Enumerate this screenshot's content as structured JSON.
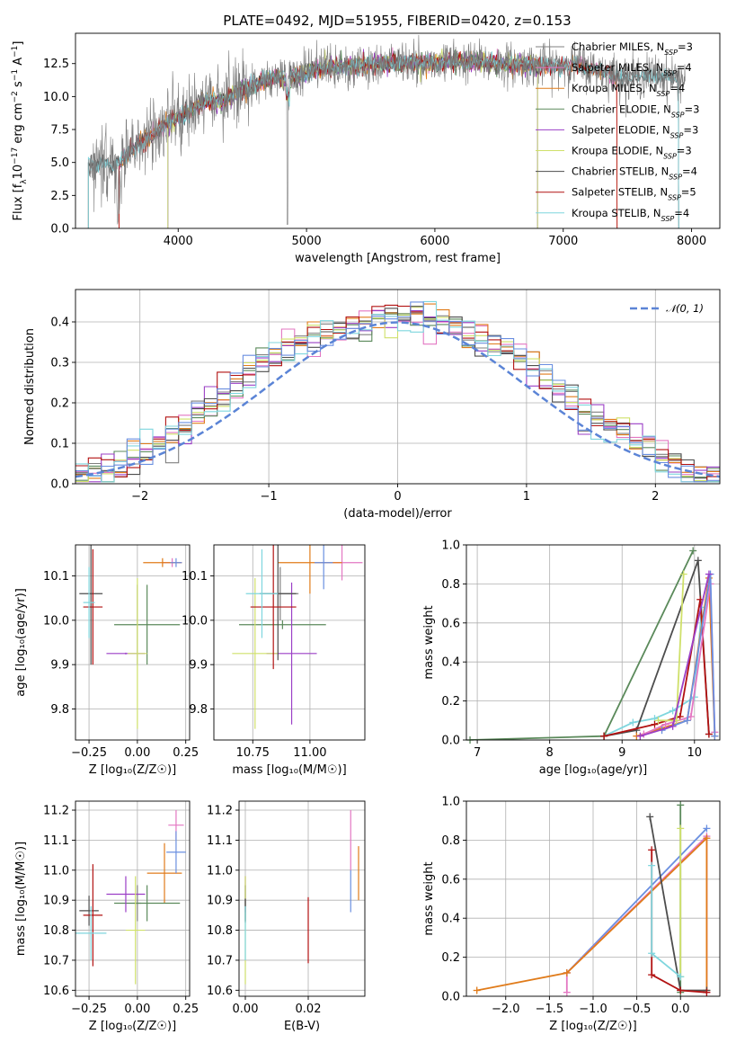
{
  "colors": {
    "chabrier_miles": "#808080",
    "salpeter_miles": "#e377c2",
    "kroupa_miles": "#e07b1a",
    "chabrier_elodie": "#5b8a5b",
    "salpeter_elodie": "#9b3fc6",
    "kroupa_elodie": "#cfe06a",
    "chabrier_stelib": "#4d4d4d",
    "salpeter_stelib": "#b21212",
    "kroupa_stelib": "#7fd6de",
    "normal": "#5b84d6",
    "blue": "#6a8fe0"
  },
  "chart_data": [
    {
      "id": "spectrum",
      "type": "line",
      "title": "PLATE=0492, MJD=51955, FIBERID=0420, z=0.153",
      "xlabel": "wavelength [Angstrom, rest frame]",
      "ylabel_html": "Flux [f<tspan baseline-shift='sub' font-size='9'>λ</tspan>10<tspan baseline-shift='super' font-size='9'>−17</tspan> erg cm<tspan baseline-shift='super' font-size='9'>−2</tspan> s<tspan baseline-shift='super' font-size='9'>−1</tspan> A<tspan baseline-shift='super' font-size='9'>−1</tspan>]",
      "xlim": [
        3200,
        8220
      ],
      "ylim": [
        0,
        14.8
      ],
      "xticks": [
        4000,
        5000,
        6000,
        7000,
        8000
      ],
      "yticks": [
        0.0,
        2.5,
        5.0,
        7.5,
        10.0,
        12.5
      ],
      "grid": false,
      "legend_position": "upper right",
      "legend": [
        {
          "label": "Chabrier MILES, N",
          "sub": "SSP",
          "val": "=3",
          "color": "#808080"
        },
        {
          "label": "Salpeter MILES, N",
          "sub": "SSP",
          "val": "=4",
          "color": "#e377c2"
        },
        {
          "label": "Kroupa MILES, N",
          "sub": "SSP",
          "val": "=4",
          "color": "#e07b1a"
        },
        {
          "label": "Chabrier ELODIE, N",
          "sub": "SSP",
          "val": "=3",
          "color": "#5b8a5b"
        },
        {
          "label": "Salpeter ELODIE, N",
          "sub": "SSP",
          "val": "=3",
          "color": "#9b3fc6"
        },
        {
          "label": "Kroupa ELODIE, N",
          "sub": "SSP",
          "val": "=3",
          "color": "#cfe06a"
        },
        {
          "label": "Chabrier STELIB, N",
          "sub": "SSP",
          "val": "=4",
          "color": "#4d4d4d"
        },
        {
          "label": "Salpeter STELIB, N",
          "sub": "SSP",
          "val": "=5",
          "color": "#b21212"
        },
        {
          "label": "Kroupa STELIB, N",
          "sub": "SSP",
          "val": "=4",
          "color": "#7fd6de"
        }
      ],
      "model_continuum": {
        "x": [
          3300,
          3500,
          3700,
          3900,
          4050,
          4200,
          4350,
          4500,
          4700,
          4900,
          5100,
          5300,
          5500,
          5700,
          5900,
          6100,
          6300,
          6500,
          6700,
          6900,
          7100,
          7300,
          7500,
          7700,
          7900,
          8000
        ],
        "y": [
          5.0,
          4.7,
          6.5,
          7.8,
          8.7,
          9.6,
          9.7,
          10.5,
          11.3,
          11.5,
          12.1,
          12.3,
          12.4,
          12.6,
          12.5,
          12.7,
          12.6,
          12.5,
          12.4,
          12.3,
          12.4,
          11.9,
          11.4,
          11.7,
          11.4,
          11.3
        ]
      },
      "models_range": [
        {
          "name": "Chabrier MILES",
          "x0": 3300,
          "x1": 7900
        },
        {
          "name": "Salpeter MILES",
          "x0": 3540,
          "x1": 7420
        },
        {
          "name": "Kroupa MILES",
          "x0": 3540,
          "x1": 7420
        },
        {
          "name": "Chabrier ELODIE",
          "x0": 3920,
          "x1": 6800
        },
        {
          "name": "Salpeter ELODIE",
          "x0": 3920,
          "x1": 6800
        },
        {
          "name": "Kroupa ELODIE",
          "x0": 3920,
          "x1": 6800
        },
        {
          "name": "Chabrier STELIB",
          "x0": 3300,
          "x1": 7900
        },
        {
          "name": "Salpeter STELIB",
          "x0": 3540,
          "x1": 7420
        },
        {
          "name": "Kroupa STELIB",
          "x0": 3300,
          "x1": 7900
        }
      ]
    },
    {
      "id": "residuals",
      "type": "line",
      "xlabel": "(data-model)/error",
      "ylabel": "Normed distribution",
      "xlim": [
        -2.5,
        2.5
      ],
      "ylim": [
        0,
        0.48
      ],
      "xticks": [
        -2,
        -1,
        0,
        1,
        2
      ],
      "xticklabels": [
        "−2",
        "−1",
        "0",
        "1",
        "2"
      ],
      "yticks": [
        0.0,
        0.1,
        0.2,
        0.3,
        0.4
      ],
      "grid": true,
      "legend_position": "upper right",
      "legend": [
        {
          "label": "𝒩(0, 1)",
          "color": "#5b84d6"
        }
      ],
      "bin_width": 0.1,
      "hist_envelope": [
        0.02,
        0.03,
        0.04,
        0.05,
        0.06,
        0.08,
        0.1,
        0.12,
        0.13,
        0.16,
        0.19,
        0.22,
        0.25,
        0.28,
        0.3,
        0.32,
        0.33,
        0.35,
        0.36,
        0.37,
        0.38,
        0.39,
        0.4,
        0.41,
        0.41,
        0.42,
        0.41,
        0.41,
        0.4,
        0.39,
        0.37,
        0.36,
        0.34,
        0.33,
        0.31,
        0.29,
        0.26,
        0.23,
        0.21,
        0.18,
        0.16,
        0.14,
        0.12,
        0.1,
        0.08,
        0.06,
        0.05,
        0.04,
        0.03,
        0.02
      ]
    },
    {
      "id": "age_vs_z",
      "type": "scatter",
      "xlabel": "Z [log₁₀(Z/Z☉)]",
      "ylabel": "age  [log₁₀(age/yr)]",
      "xlim": [
        -0.32,
        0.27
      ],
      "ylim": [
        9.73,
        10.17
      ],
      "xticks": [
        -0.25,
        0.0,
        0.25
      ],
      "xticklabels": [
        "−0.25",
        "0.00",
        "0.25"
      ],
      "yticks": [
        9.8,
        9.9,
        10.0,
        10.1
      ],
      "grid": true,
      "points": [
        {
          "color": "#808080",
          "x": 0.0,
          "y": 9.99,
          "xerr": 0.0,
          "yerr": 0.09
        },
        {
          "color": "#e377c2",
          "x": 0.18,
          "y": 10.13,
          "xerr": 0.05,
          "yerr": 0.01
        },
        {
          "color": "#e07b1a",
          "x": 0.13,
          "y": 10.13,
          "xerr": 0.1,
          "yerr": 0.01
        },
        {
          "color": "#5b8a5b",
          "x": 0.05,
          "y": 9.99,
          "xerr": 0.17,
          "yerr": 0.09
        },
        {
          "color": "#9b3fc6",
          "x": -0.06,
          "y": 9.925,
          "xerr": 0.1,
          "yerr": 0.002
        },
        {
          "color": "#cfe06a",
          "x": 0.0,
          "y": 9.925,
          "xerr": 0.05,
          "yerr": 0.17
        },
        {
          "color": "#4d4d4d",
          "x": -0.24,
          "y": 10.06,
          "xerr": 0.06,
          "yerr": 0.16
        },
        {
          "color": "#b21212",
          "x": -0.23,
          "y": 10.03,
          "xerr": 0.05,
          "yerr": 0.13
        },
        {
          "color": "#7fd6de",
          "x": -0.25,
          "y": 10.04,
          "xerr": 0.03,
          "yerr": 0.08
        },
        {
          "color": "#6a8fe0",
          "x": 0.2,
          "y": 10.13,
          "xerr": 0.03,
          "yerr": 0.01
        }
      ]
    },
    {
      "id": "age_vs_mass",
      "type": "scatter",
      "xlabel": "mass [log₁₀(M/M☉)]",
      "xlim": [
        10.58,
        11.24
      ],
      "ylim": [
        9.73,
        10.17
      ],
      "xticks": [
        10.75,
        11.0
      ],
      "xticklabels": [
        "10.75",
        "11.00"
      ],
      "yticks": [
        9.8,
        9.9,
        10.0,
        10.1
      ],
      "grid": true,
      "points": [
        {
          "color": "#808080",
          "x": 10.87,
          "y": 10.06,
          "xerr": 0.08,
          "yerr": 0.06
        },
        {
          "color": "#e377c2",
          "x": 11.14,
          "y": 10.13,
          "xerr": 0.09,
          "yerr": 0.04
        },
        {
          "color": "#e07b1a",
          "x": 11.0,
          "y": 10.13,
          "xerr": 0.14,
          "yerr": 0.07
        },
        {
          "color": "#5b8a5b",
          "x": 10.88,
          "y": 9.99,
          "xerr": 0.19,
          "yerr": 0.01
        },
        {
          "color": "#9b3fc6",
          "x": 10.92,
          "y": 9.925,
          "xerr": 0.11,
          "yerr": 0.16
        },
        {
          "color": "#cfe06a",
          "x": 10.76,
          "y": 9.925,
          "xerr": 0.1,
          "yerr": 0.17
        },
        {
          "color": "#4d4d4d",
          "x": 10.86,
          "y": 10.06,
          "xerr": 0.08,
          "yerr": 0.15
        },
        {
          "color": "#b21212",
          "x": 10.84,
          "y": 10.03,
          "xerr": 0.1,
          "yerr": 0.14
        },
        {
          "color": "#7fd6de",
          "x": 10.79,
          "y": 10.06,
          "xerr": 0.07,
          "yerr": 0.1
        },
        {
          "color": "#6a8fe0",
          "x": 11.06,
          "y": 10.13,
          "xerr": 0.04,
          "yerr": 0.06
        }
      ]
    },
    {
      "id": "massweight_vs_age",
      "type": "line",
      "xlabel": "age  [log₁₀(age/yr)]",
      "ylabel": "mass weight",
      "xlim": [
        6.85,
        10.35
      ],
      "ylim": [
        0,
        1.0
      ],
      "xticks": [
        7,
        8,
        9,
        10
      ],
      "yticks": [
        0.0,
        0.2,
        0.4,
        0.6,
        0.8,
        1.0
      ],
      "grid": true,
      "series": [
        {
          "color": "#7fd6de",
          "x": [
            8.75,
            9.15,
            9.45,
            9.7,
            10.0,
            10.1
          ],
          "y": [
            0.02,
            0.09,
            0.11,
            0.15,
            0.22,
            0.68
          ]
        },
        {
          "color": "#5b8a5b",
          "x": [
            6.9,
            8.75,
            9.98
          ],
          "y": [
            0.0,
            0.02,
            0.97
          ]
        },
        {
          "color": "#4d4d4d",
          "x": [
            8.75,
            9.2,
            10.05,
            10.2
          ],
          "y": [
            0.02,
            0.05,
            0.92,
            0.03
          ]
        },
        {
          "color": "#b21212",
          "x": [
            8.75,
            9.45,
            9.8,
            10.08,
            10.2
          ],
          "y": [
            0.02,
            0.08,
            0.12,
            0.72,
            0.03
          ]
        },
        {
          "color": "#e07b1a",
          "x": [
            9.2,
            9.55,
            9.9,
            10.2,
            10.28
          ],
          "y": [
            0.02,
            0.06,
            0.1,
            0.83,
            0.02
          ]
        },
        {
          "color": "#e377c2",
          "x": [
            9.3,
            9.6,
            9.95,
            10.22,
            10.28
          ],
          "y": [
            0.03,
            0.08,
            0.12,
            0.8,
            0.04
          ]
        },
        {
          "color": "#cfe06a",
          "x": [
            9.5,
            9.75,
            9.85
          ],
          "y": [
            0.1,
            0.1,
            0.85
          ]
        },
        {
          "color": "#6a8fe0",
          "x": [
            9.55,
            9.9,
            10.22,
            10.28
          ],
          "y": [
            0.05,
            0.1,
            0.85,
            0.02
          ]
        },
        {
          "color": "#9b3fc6",
          "x": [
            9.25,
            9.7,
            10.2
          ],
          "y": [
            0.02,
            0.07,
            0.85
          ]
        }
      ]
    },
    {
      "id": "mass_vs_z",
      "type": "scatter",
      "xlabel": "Z [log₁₀(Z/Z☉)]",
      "ylabel": "mass [log₁₀(M/M☉)]",
      "xlim": [
        -0.32,
        0.27
      ],
      "ylim": [
        10.58,
        11.23
      ],
      "xticks": [
        -0.25,
        0.0,
        0.25
      ],
      "xticklabels": [
        "−0.25",
        "0.00",
        "0.25"
      ],
      "yticks": [
        10.6,
        10.7,
        10.8,
        10.9,
        11.0,
        11.1,
        11.2
      ],
      "grid": true,
      "points": [
        {
          "color": "#808080",
          "x": 0.0,
          "y": 10.89,
          "xerr": 0.02,
          "yerr": 0.06
        },
        {
          "color": "#e377c2",
          "x": 0.2,
          "y": 11.15,
          "xerr": 0.04,
          "yerr": 0.05
        },
        {
          "color": "#e07b1a",
          "x": 0.14,
          "y": 10.99,
          "xerr": 0.09,
          "yerr": 0.1
        },
        {
          "color": "#5b8a5b",
          "x": 0.05,
          "y": 10.89,
          "xerr": 0.17,
          "yerr": 0.06
        },
        {
          "color": "#9b3fc6",
          "x": -0.06,
          "y": 10.92,
          "xerr": 0.1,
          "yerr": 0.06
        },
        {
          "color": "#cfe06a",
          "x": -0.01,
          "y": 10.8,
          "xerr": 0.05,
          "yerr": 0.18
        },
        {
          "color": "#4d4d4d",
          "x": -0.25,
          "y": 10.865,
          "xerr": 0.05,
          "yerr": 0.05
        },
        {
          "color": "#b21212",
          "x": -0.23,
          "y": 10.85,
          "xerr": 0.05,
          "yerr": 0.17
        },
        {
          "color": "#7fd6de",
          "x": -0.24,
          "y": 10.79,
          "xerr": 0.08,
          "yerr": 0.09
        },
        {
          "color": "#6a8fe0",
          "x": 0.2,
          "y": 11.06,
          "xerr": 0.05,
          "yerr": 0.07
        }
      ]
    },
    {
      "id": "mass_vs_ebv",
      "type": "scatter",
      "xlabel": "E(B-V)",
      "xlim": [
        -0.002,
        0.038
      ],
      "ylim": [
        10.58,
        11.23
      ],
      "xticks": [
        0.0,
        0.02
      ],
      "xticklabels": [
        "0.00",
        "0.02"
      ],
      "yticks": [
        10.6,
        10.7,
        10.8,
        10.9,
        11.0,
        11.1,
        11.2
      ],
      "grid": true,
      "points": [
        {
          "color": "#808080",
          "x": 0.0,
          "y": 10.89,
          "xerr": 0.0,
          "yerr": 0.06
        },
        {
          "color": "#e377c2",
          "x": 0.0335,
          "y": 11.1,
          "xerr": 0.0,
          "yerr": 0.1
        },
        {
          "color": "#e07b1a",
          "x": 0.036,
          "y": 10.99,
          "xerr": 0.0,
          "yerr": 0.09
        },
        {
          "color": "#5b8a5b",
          "x": 0.0,
          "y": 10.89,
          "xerr": 0.0,
          "yerr": 0.06
        },
        {
          "color": "#9b3fc6",
          "x": 0.0,
          "y": 10.92,
          "xerr": 0.0,
          "yerr": 0.06
        },
        {
          "color": "#cfe06a",
          "x": 0.0,
          "y": 10.8,
          "xerr": 0.0,
          "yerr": 0.18
        },
        {
          "color": "#4d4d4d",
          "x": 0.0,
          "y": 10.865,
          "xerr": 0.0,
          "yerr": 0.04
        },
        {
          "color": "#b21212",
          "x": 0.02,
          "y": 10.8,
          "xerr": 0.0,
          "yerr": 0.11
        },
        {
          "color": "#7fd6de",
          "x": 0.0,
          "y": 10.79,
          "xerr": 0.0,
          "yerr": 0.09
        },
        {
          "color": "#6a8fe0",
          "x": 0.0335,
          "y": 10.93,
          "xerr": 0.0,
          "yerr": 0.07
        }
      ]
    },
    {
      "id": "massweight_vs_z",
      "type": "line",
      "xlabel": "Z [log₁₀(Z/Z☉)]",
      "ylabel": "mass weight",
      "xlim": [
        -2.45,
        0.45
      ],
      "ylim": [
        0,
        1.0
      ],
      "xticks": [
        -2.0,
        -1.5,
        -1.0,
        -0.5,
        0.0
      ],
      "xticklabels": [
        "−2.0",
        "−1.5",
        "−1.0",
        "−0.5",
        "0.0"
      ],
      "yticks": [
        0.0,
        0.2,
        0.4,
        0.6,
        0.8,
        1.0
      ],
      "grid": true,
      "series": [
        {
          "color": "#6a8fe0",
          "x": [
            -1.3,
            0.3
          ],
          "y": [
            0.12,
            0.86
          ]
        },
        {
          "color": "#e377c2",
          "x": [
            -1.3,
            -1.3,
            0.3,
            0.3
          ],
          "y": [
            0.02,
            0.12,
            0.82,
            0.02
          ]
        },
        {
          "color": "#e07b1a",
          "x": [
            -2.33,
            -1.3,
            0.3,
            0.3
          ],
          "y": [
            0.03,
            0.12,
            0.81,
            0.03
          ]
        },
        {
          "color": "#5b8a5b",
          "x": [
            0.0,
            0.0
          ],
          "y": [
            0.98,
            0.02
          ]
        },
        {
          "color": "#cfe06a",
          "x": [
            0.0,
            0.0
          ],
          "y": [
            0.86,
            0.1
          ]
        },
        {
          "color": "#4d4d4d",
          "x": [
            -0.35,
            0.0,
            0.3
          ],
          "y": [
            0.92,
            0.03,
            0.03
          ]
        },
        {
          "color": "#b21212",
          "x": [
            -0.33,
            -0.33,
            0.0,
            0.3
          ],
          "y": [
            0.75,
            0.11,
            0.03,
            0.02
          ]
        },
        {
          "color": "#7fd6de",
          "x": [
            -0.33,
            -0.33,
            0.0
          ],
          "y": [
            0.67,
            0.22,
            0.1
          ]
        }
      ]
    }
  ]
}
